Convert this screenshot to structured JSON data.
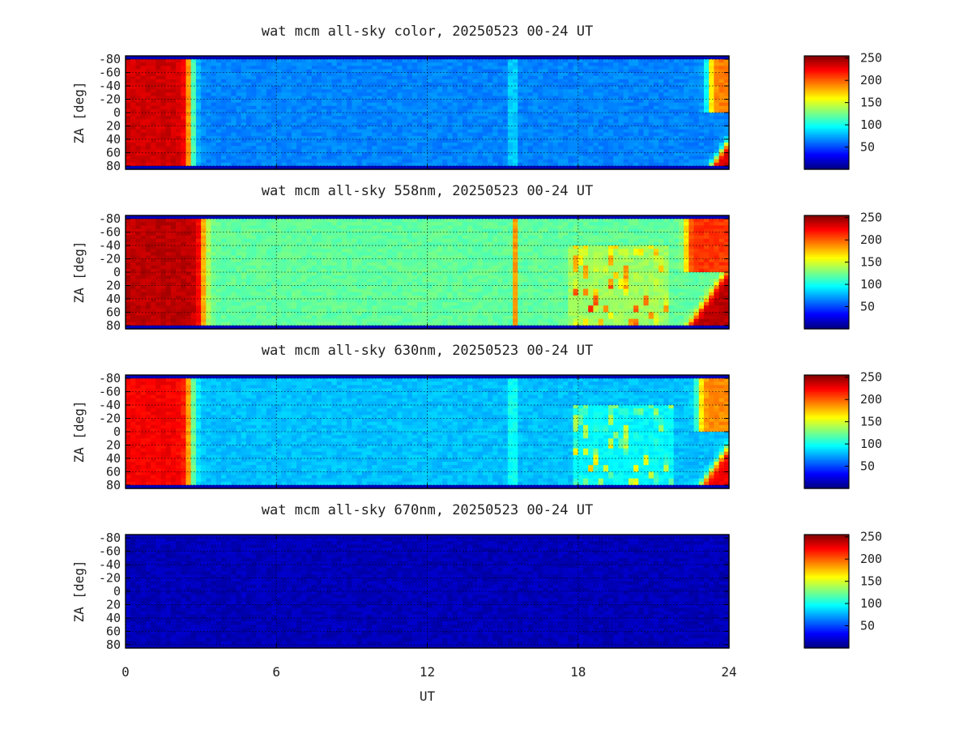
{
  "figure": {
    "xlabel": "UT",
    "x_ticks": [
      "0",
      "6",
      "12",
      "18",
      "24"
    ],
    "ylabel": "ZA [deg]",
    "y_ticks": [
      "-80",
      "-60",
      "-40",
      "-20",
      "0",
      "20",
      "40",
      "60",
      "80"
    ],
    "colorbar_ticks": [
      "50",
      "100",
      "150",
      "200",
      "250"
    ],
    "colors": {
      "frame": "#000000",
      "grid": "#000000",
      "colormap": "jet"
    }
  },
  "chart_data": [
    {
      "type": "heatmap",
      "title": "wat mcm all-sky color, 20250523 00-24 UT",
      "xlabel": "UT",
      "ylabel": "ZA [deg]",
      "xlim": [
        0,
        24
      ],
      "ylim": [
        -85,
        85
      ],
      "clim": [
        0,
        255
      ],
      "grid": true,
      "colorbar": true,
      "background_value": 65,
      "edge_value": 15,
      "pattern": {
        "sunset_end_ut": 2.6,
        "sunrise_start_ut": 23.2,
        "dusk_level": 235,
        "bright_streaks_ut": [
          15.4
        ]
      }
    },
    {
      "type": "heatmap",
      "title": "wat mcm all-sky 558nm, 20250523 00-24 UT",
      "xlabel": "UT",
      "ylabel": "ZA [deg]",
      "xlim": [
        0,
        24
      ],
      "ylim": [
        -85,
        85
      ],
      "clim": [
        0,
        255
      ],
      "grid": true,
      "colorbar": true,
      "background_value": 120,
      "edge_value": 15,
      "pattern": {
        "sunset_end_ut": 3.1,
        "sunrise_start_ut": 22.3,
        "dusk_level": 240,
        "bright_streaks_ut": [
          15.45
        ],
        "aurora_span_ut": [
          17.5,
          21.7
        ]
      }
    },
    {
      "type": "heatmap",
      "title": "wat mcm all-sky 630nm, 20250523 00-24 UT",
      "xlabel": "UT",
      "ylabel": "ZA [deg]",
      "xlim": [
        0,
        24
      ],
      "ylim": [
        -85,
        85
      ],
      "clim": [
        0,
        255
      ],
      "grid": true,
      "colorbar": true,
      "background_value": 80,
      "edge_value": 15,
      "pattern": {
        "sunset_end_ut": 2.6,
        "sunrise_start_ut": 22.8,
        "dusk_level": 225,
        "bright_streaks_ut": [
          15.4
        ],
        "aurora_span_ut": [
          17.8,
          21.8
        ]
      }
    },
    {
      "type": "heatmap",
      "title": "wat mcm all-sky 670nm, 20250523 00-24 UT",
      "xlabel": "UT",
      "ylabel": "ZA [deg]",
      "xlim": [
        0,
        24
      ],
      "ylim": [
        -85,
        85
      ],
      "clim": [
        0,
        255
      ],
      "grid": true,
      "colorbar": true,
      "background_value": 14,
      "edge_value": 14,
      "pattern": {}
    }
  ]
}
